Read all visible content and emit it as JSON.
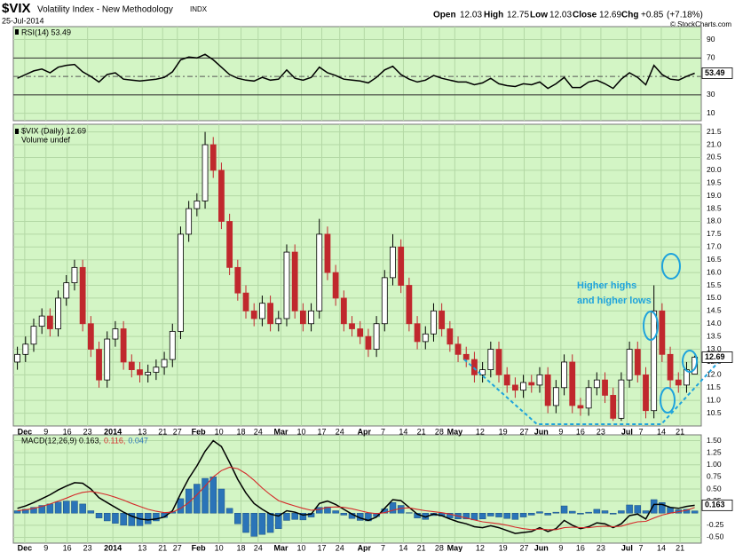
{
  "header": {
    "symbol": "$VIX",
    "name": "Volatility Index - New Methodology",
    "exchange": "INDX",
    "date": "25-Jul-2014",
    "open_label": "Open",
    "open": "12.03",
    "high_label": "High",
    "high": "12.75",
    "low_label": "Low",
    "low": "12.03",
    "close_label": "Close",
    "close": "12.69",
    "chg_label": "Chg",
    "chg": "+0.85",
    "chg_pct": "(+7.18%)",
    "copyright": "© StockCharts.com"
  },
  "chart_data": [
    {
      "type": "line",
      "background": "#d3f5c5",
      "grid": true,
      "grid_color": "#b3d8a5",
      "ylim": [
        2,
        104
      ],
      "yticks": [
        10,
        30,
        70,
        90
      ],
      "ref_lines": [
        70,
        30
      ],
      "mid_line": 50,
      "series": [
        {
          "name": "RSI(14) 53.49",
          "color": "#000000",
          "values": [
            48,
            52,
            56,
            58,
            54,
            60,
            62,
            63,
            55,
            50,
            44,
            52,
            54,
            47,
            46,
            45,
            46,
            47,
            49,
            55,
            68,
            71,
            70,
            74,
            68,
            60,
            52,
            48,
            46,
            45,
            49,
            46,
            47,
            57,
            48,
            46,
            49,
            60,
            54,
            51,
            47,
            46,
            45,
            43,
            49,
            57,
            61,
            52,
            47,
            44,
            46,
            51,
            48,
            46,
            44,
            44,
            41,
            43,
            48,
            42,
            40,
            39,
            42,
            41,
            44,
            37,
            42,
            49,
            38,
            38,
            44,
            46,
            42,
            37,
            47,
            54,
            49,
            41,
            62,
            52,
            47,
            46,
            50,
            53.49
          ]
        }
      ]
    },
    {
      "type": "candlestick",
      "background": "#d3f5c5",
      "grid": true,
      "grid_color": "#b3d8a5",
      "legend": [
        "$VIX (Daily) 12.69",
        "Volume undef"
      ],
      "up_color": "#ffffff",
      "down_color": "#c0282d",
      "annotations": [
        "Higher highs",
        "and higher lows"
      ],
      "annotation_color": "#1ea3dc",
      "xlim": [
        -0.5,
        83.8
      ],
      "ylim": [
        10,
        21.8
      ],
      "yticks": [
        10.5,
        {
          "value": 11,
          "label": "11.0"
        },
        11.5,
        {
          "value": 12,
          "label": "12.0"
        },
        12.5,
        {
          "value": 13,
          "label": "13.0"
        },
        13.5,
        {
          "value": 14,
          "label": "14.0"
        },
        14.5,
        {
          "value": 15,
          "label": "15.0"
        },
        15.5,
        {
          "value": 16,
          "label": "16.0"
        },
        16.5,
        {
          "value": 17,
          "label": "17.0"
        },
        17.5,
        {
          "value": 18,
          "label": "18.0"
        },
        18.5,
        {
          "value": 19,
          "label": "19.0"
        },
        19.5,
        {
          "value": 20,
          "label": "20.0"
        },
        20.5,
        {
          "value": 21,
          "label": "21.0"
        },
        21.5
      ],
      "xticks": [
        {
          "value": 0.9,
          "label": "Dec",
          "major": true
        },
        {
          "value": 3.5,
          "label": "9"
        },
        {
          "value": 6.1,
          "label": "16"
        },
        {
          "value": 8.6,
          "label": "23"
        },
        {
          "value": 11.7,
          "label": "2014",
          "major": true
        },
        {
          "value": 15.3,
          "label": "13"
        },
        {
          "value": 17.8,
          "label": "21"
        },
        {
          "value": 19.6,
          "label": "27"
        },
        {
          "value": 22.2,
          "label": "Feb",
          "major": true
        },
        {
          "value": 24.7,
          "label": "10"
        },
        {
          "value": 27.4,
          "label": "18"
        },
        {
          "value": 29.5,
          "label": "24"
        },
        {
          "value": 32.3,
          "label": "Mar",
          "major": true
        },
        {
          "value": 34.8,
          "label": "10"
        },
        {
          "value": 37.3,
          "label": "17"
        },
        {
          "value": 39.5,
          "label": "24"
        },
        {
          "value": 42.5,
          "label": "Apr",
          "major": true
        },
        {
          "value": 44.8,
          "label": "7"
        },
        {
          "value": 47.3,
          "label": "14"
        },
        {
          "value": 49.5,
          "label": "21"
        },
        {
          "value": 51.7,
          "label": "28"
        },
        {
          "value": 53.6,
          "label": "May",
          "major": true
        },
        {
          "value": 56.7,
          "label": "12"
        },
        {
          "value": 59.5,
          "label": "19"
        },
        {
          "value": 62.1,
          "label": "27"
        },
        {
          "value": 64.2,
          "label": "Jun",
          "major": true
        },
        {
          "value": 66.6,
          "label": "9"
        },
        {
          "value": 69.0,
          "label": "16"
        },
        {
          "value": 71.5,
          "label": "23"
        },
        {
          "value": 74.7,
          "label": "Jul",
          "major": true
        },
        {
          "value": 76.4,
          "label": "7"
        },
        {
          "value": 78.9,
          "label": "14"
        },
        {
          "value": 81.2,
          "label": "21"
        }
      ],
      "open": [
        12.5,
        12.8,
        13.2,
        13.9,
        14.3,
        13.8,
        15.0,
        15.6,
        16.2,
        14.0,
        13.0,
        11.8,
        13.4,
        13.8,
        12.5,
        12.2,
        12.0,
        12.1,
        12.3,
        12.6,
        13.7,
        17.5,
        18.5,
        18.8,
        21.0,
        20.0,
        18.0,
        16.2,
        15.2,
        14.5,
        14.2,
        14.8,
        14.0,
        14.2,
        16.8,
        14.5,
        14.0,
        14.5,
        17.5,
        16.0,
        15.0,
        14.0,
        13.8,
        13.5,
        13.0,
        14.0,
        15.8,
        17.0,
        15.5,
        14.0,
        13.3,
        13.6,
        14.5,
        13.8,
        13.2,
        12.8,
        12.6,
        12.0,
        12.2,
        13.0,
        12.0,
        11.6,
        11.4,
        11.7,
        11.6,
        12.0,
        10.8,
        11.5,
        12.5,
        10.8,
        10.7,
        11.5,
        11.8,
        11.2,
        10.3,
        11.8,
        13.0,
        12.0,
        10.6,
        14.5,
        12.8,
        11.8,
        11.6,
        12.03
      ],
      "high": [
        13.1,
        13.5,
        14.2,
        14.6,
        14.6,
        15.3,
        15.9,
        16.5,
        16.5,
        14.3,
        13.3,
        13.7,
        14.1,
        14.1,
        12.8,
        12.5,
        12.4,
        12.6,
        12.9,
        14.0,
        17.8,
        18.8,
        19.1,
        21.5,
        21.3,
        20.3,
        18.3,
        16.5,
        15.5,
        14.8,
        15.1,
        15.1,
        14.5,
        17.1,
        17.1,
        14.8,
        14.8,
        18.1,
        17.8,
        16.3,
        15.3,
        14.3,
        14.1,
        13.8,
        14.3,
        16.1,
        17.5,
        17.3,
        15.8,
        14.3,
        13.9,
        14.8,
        14.8,
        14.1,
        13.5,
        13.1,
        12.9,
        12.5,
        13.3,
        13.3,
        12.3,
        11.9,
        12.0,
        12.0,
        12.3,
        12.3,
        11.8,
        12.8,
        12.8,
        11.1,
        11.8,
        12.1,
        12.1,
        11.5,
        12.1,
        13.3,
        13.3,
        12.3,
        15.5,
        14.8,
        13.1,
        12.1,
        12.5,
        12.75
      ],
      "low": [
        12.2,
        12.5,
        12.9,
        13.6,
        13.5,
        13.5,
        14.7,
        15.3,
        13.7,
        12.7,
        11.5,
        11.5,
        13.1,
        12.2,
        11.9,
        11.7,
        11.7,
        11.8,
        12.0,
        12.3,
        13.4,
        17.2,
        18.2,
        18.5,
        19.7,
        17.7,
        15.9,
        14.9,
        14.2,
        13.9,
        13.9,
        13.7,
        13.7,
        13.9,
        14.2,
        13.7,
        13.7,
        14.2,
        15.7,
        14.7,
        13.7,
        13.5,
        13.2,
        12.7,
        12.7,
        13.7,
        15.5,
        15.2,
        13.7,
        13.0,
        13.0,
        13.3,
        13.5,
        12.9,
        12.5,
        12.3,
        11.7,
        11.7,
        11.9,
        11.7,
        11.3,
        11.1,
        11.1,
        11.3,
        11.3,
        10.5,
        10.5,
        11.2,
        10.5,
        10.4,
        10.4,
        11.2,
        10.9,
        10.2,
        10.2,
        11.5,
        11.7,
        10.3,
        10.3,
        12.5,
        11.5,
        11.3,
        11.3,
        12.03
      ],
      "close": [
        12.8,
        13.2,
        13.9,
        14.3,
        13.8,
        15.0,
        15.6,
        16.2,
        14.0,
        13.0,
        11.8,
        13.4,
        13.8,
        12.5,
        12.2,
        12.0,
        12.1,
        12.3,
        12.6,
        13.7,
        17.5,
        18.5,
        18.8,
        21.0,
        20.0,
        18.0,
        16.2,
        15.2,
        14.5,
        14.2,
        14.8,
        14.0,
        14.2,
        16.8,
        14.5,
        14.0,
        14.5,
        17.5,
        16.0,
        15.0,
        14.0,
        13.8,
        13.5,
        13.0,
        14.0,
        15.8,
        17.0,
        15.5,
        14.0,
        13.3,
        13.6,
        14.5,
        13.8,
        13.2,
        12.8,
        12.6,
        12.0,
        12.2,
        13.0,
        12.0,
        11.6,
        11.4,
        11.7,
        11.6,
        12.0,
        10.8,
        11.5,
        12.5,
        10.8,
        10.7,
        11.5,
        11.8,
        11.2,
        10.3,
        11.8,
        13.0,
        12.0,
        10.6,
        14.5,
        12.8,
        11.8,
        11.6,
        12.2,
        12.69
      ]
    },
    {
      "type": "line",
      "background": "#d3f5c5",
      "grid": true,
      "grid_color": "#b3d8a5",
      "ylim": [
        -0.62,
        1.62
      ],
      "yticks": [
        {
          "value": -0.5,
          "label": "-0.50"
        },
        {
          "value": -0.25,
          "label": "-0.25"
        },
        {
          "value": 0.25,
          "label": "0.25"
        },
        {
          "value": 0.5,
          "label": "0.50"
        },
        {
          "value": 0.75,
          "label": "0.75"
        },
        {
          "value": 1,
          "label": "1.00"
        },
        {
          "value": 1.25,
          "label": "1.25"
        },
        {
          "value": 1.5,
          "label": "1.50"
        }
      ],
      "series": [
        {
          "name": "0.047",
          "style": "bar",
          "color": "#2a74b8",
          "values": [
            0.05,
            0.08,
            0.12,
            0.16,
            0.19,
            0.23,
            0.25,
            0.25,
            0.19,
            0.05,
            -0.1,
            -0.16,
            -0.21,
            -0.25,
            -0.26,
            -0.26,
            -0.22,
            -0.16,
            -0.09,
            0.03,
            0.3,
            0.5,
            0.6,
            0.72,
            0.75,
            0.5,
            0.1,
            -0.22,
            -0.4,
            -0.48,
            -0.44,
            -0.4,
            -0.32,
            -0.15,
            -0.13,
            -0.14,
            -0.08,
            0.12,
            0.13,
            0.05,
            -0.04,
            -0.11,
            -0.15,
            -0.16,
            -0.07,
            0.09,
            0.22,
            0.16,
            0.01,
            -0.1,
            -0.13,
            -0.05,
            -0.06,
            -0.1,
            -0.12,
            -0.12,
            -0.14,
            -0.12,
            -0.06,
            -0.08,
            -0.11,
            -0.13,
            -0.08,
            -0.04,
            0.03,
            -0.04,
            0.02,
            0.15,
            0.04,
            -0.02,
            0.02,
            0.08,
            0.05,
            -0.02,
            0.05,
            0.17,
            0.16,
            0.05,
            0.28,
            0.22,
            0.12,
            0.07,
            0.08,
            0.047
          ]
        },
        {
          "name": "MACD(12,26,9) 0.163,",
          "color": "#000000",
          "values": [
            0.1,
            0.15,
            0.22,
            0.3,
            0.38,
            0.48,
            0.56,
            0.63,
            0.62,
            0.5,
            0.32,
            0.22,
            0.12,
            0.02,
            -0.06,
            -0.12,
            -0.14,
            -0.12,
            -0.08,
            0.05,
            0.4,
            0.72,
            0.98,
            1.28,
            1.5,
            1.38,
            1.05,
            0.7,
            0.42,
            0.2,
            0.08,
            -0.02,
            -0.06,
            0.05,
            0.02,
            -0.04,
            -0.02,
            0.2,
            0.25,
            0.18,
            0.08,
            -0.02,
            -0.1,
            -0.15,
            -0.08,
            0.1,
            0.28,
            0.26,
            0.12,
            -0.02,
            -0.08,
            -0.02,
            -0.05,
            -0.12,
            -0.18,
            -0.22,
            -0.28,
            -0.3,
            -0.26,
            -0.3,
            -0.36,
            -0.42,
            -0.4,
            -0.38,
            -0.3,
            -0.38,
            -0.32,
            -0.15,
            -0.25,
            -0.32,
            -0.28,
            -0.2,
            -0.22,
            -0.3,
            -0.22,
            -0.05,
            -0.02,
            -0.12,
            0.18,
            0.18,
            0.12,
            0.1,
            0.14,
            0.163
          ]
        },
        {
          "name": "0.116,",
          "color": "#d42a2a",
          "values": [
            0.05,
            0.07,
            0.1,
            0.14,
            0.19,
            0.25,
            0.31,
            0.38,
            0.43,
            0.45,
            0.42,
            0.38,
            0.33,
            0.27,
            0.2,
            0.14,
            0.08,
            0.04,
            0.01,
            0.02,
            0.1,
            0.22,
            0.38,
            0.56,
            0.75,
            0.88,
            0.95,
            0.92,
            0.82,
            0.68,
            0.52,
            0.38,
            0.26,
            0.2,
            0.15,
            0.1,
            0.06,
            0.08,
            0.12,
            0.13,
            0.12,
            0.09,
            0.05,
            0.01,
            -0.01,
            0.01,
            0.06,
            0.1,
            0.11,
            0.08,
            0.05,
            0.03,
            0.01,
            -0.02,
            -0.06,
            -0.1,
            -0.14,
            -0.18,
            -0.2,
            -0.22,
            -0.25,
            -0.29,
            -0.32,
            -0.34,
            -0.33,
            -0.34,
            -0.34,
            -0.3,
            -0.29,
            -0.3,
            -0.3,
            -0.28,
            -0.27,
            -0.28,
            -0.27,
            -0.22,
            -0.18,
            -0.17,
            -0.1,
            -0.04,
            0.0,
            0.03,
            0.06,
            0.116
          ]
        }
      ]
    }
  ]
}
